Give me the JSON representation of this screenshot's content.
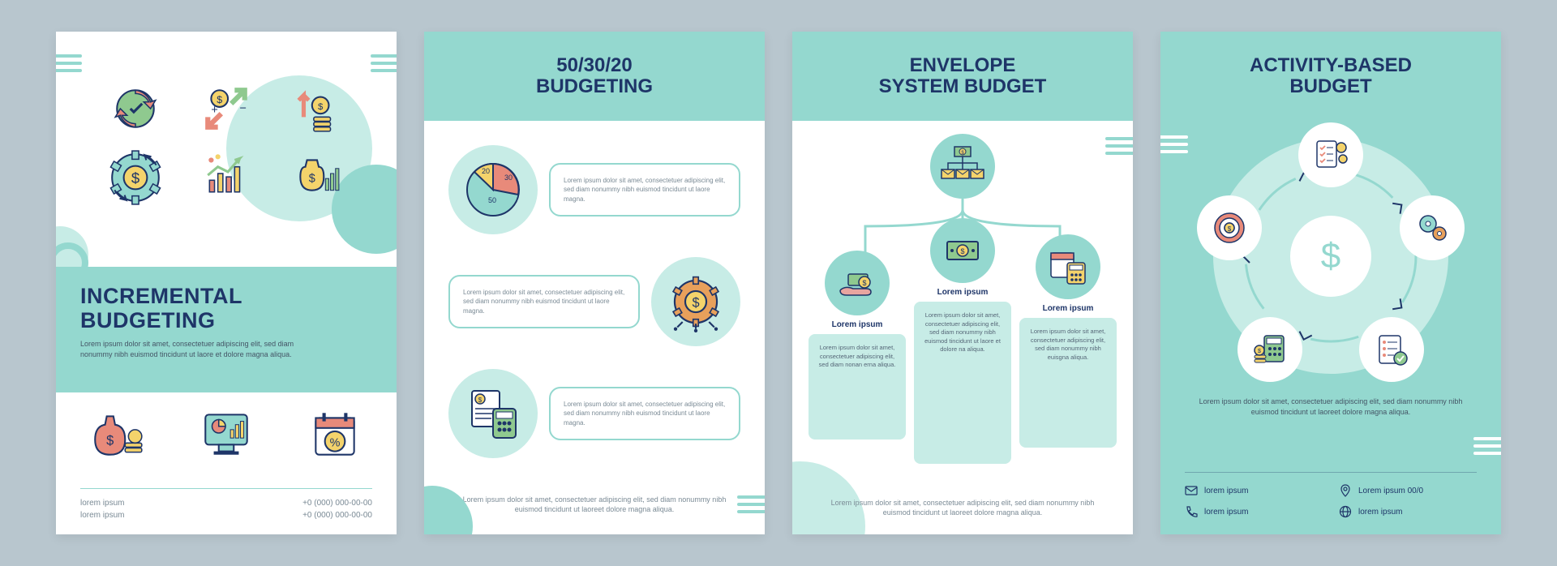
{
  "colors": {
    "teal": "#94d8cf",
    "teal_light": "#c7ece6",
    "navy": "#1e3568",
    "red": "#e88a7a",
    "yellow": "#f4d36b",
    "green": "#8fc98f",
    "orange": "#e8a05b",
    "bg": "#b8c6ce",
    "card": "#ffffff"
  },
  "lorem_short": "Lorem ipsum dolor sit amet, consectetuer adipiscing elit, sed diam nonummy nibh euismod tincidunt ut laore magna.",
  "lorem_med": "Lorem ipsum dolor sit amet, consectetuer adipiscing elit, sed diam nonummy nibh euismod tincidunt ut laoreet dolore magna aliqua.",
  "panel1": {
    "title": "INCREMENTAL BUDGETING",
    "subtitle": "Lorem ipsum dolor sit amet, consectetuer adipiscing elit, sed diam nonummy nibh euismod tincidunt ut laore et dolore magna aliqua.",
    "top_icons": [
      "refresh-cycle",
      "money-exchange",
      "coins-up",
      "gear-dollar",
      "chart-growth",
      "money-bag-chart"
    ],
    "bottom_icons": [
      "money-bag-coins",
      "computer-chart",
      "calendar-percent"
    ],
    "footer_left": [
      "lorem ipsum",
      "lorem ipsum"
    ],
    "footer_right": [
      "+0 (000) 000-00-00",
      "+0 (000) 000-00-00"
    ]
  },
  "panel2": {
    "title": "50/30/20 BUDGETING",
    "pie": {
      "slices": [
        {
          "label": "50",
          "pct": 50,
          "color": "#94d8cf"
        },
        {
          "label": "30",
          "pct": 30,
          "color": "#e88a7a"
        },
        {
          "label": "20",
          "pct": 20,
          "color": "#f4d36b"
        }
      ]
    },
    "rows": [
      {
        "icon": "pie-chart",
        "text": "Lorem ipsum dolor sit amet, consectetuer adipiscing elit, sed diam nonummy nibh euismod tincidunt ut laore magna."
      },
      {
        "icon": "gear-dollar",
        "text": "Lorem ipsum dolor sit amet, consectetuer adipiscing elit, sed diam nonummy nibh euismod tincidunt ut laore magna."
      },
      {
        "icon": "doc-calculator",
        "text": "Lorem ipsum dolor sit amet, consectetuer adipiscing elit, sed diam nonummy nibh euismod tincidunt ut laore magna."
      }
    ],
    "footer": "Lorem ipsum dolor sit amet, consectetuer adipiscing elit, sed diam nonummy nibh euismod tincidunt ut laoreet dolore magna aliqua."
  },
  "panel3": {
    "title": "ENVELOPE SYSTEM BUDGET",
    "root_icon": "envelopes-tree",
    "cols": [
      {
        "icon": "hand-money",
        "label": "Lorem ipsum",
        "text": "Lorem ipsum dolor sit amet, consectetuer adipiscing elit, sed diam nonan erna aliqua."
      },
      {
        "icon": "cash-bill",
        "label": "Lorem ipsum",
        "text": "Lorem ipsum dolor sit amet, consectetuer adipiscing elit, sed diam nonummy nibh euismod tincidunt ut laore et dolore na aliqua."
      },
      {
        "icon": "calendar-calc",
        "label": "Lorem ipsum",
        "text": "Lorem ipsum dolor sit amet, consectetuer adipiscing elit, sed diam nonummy nibh euisgna aliqua."
      }
    ],
    "footer": "Lorem ipsum dolor sit amet, consectetuer adipiscing elit, sed diam nonummy nibh euismod tincidunt ut laoreet dolore magna aliqua."
  },
  "panel4": {
    "title": "ACTIVITY-BASED BUDGET",
    "center_icon": "dollar",
    "nodes": [
      "checklist-gears",
      "gears",
      "target",
      "doc-check",
      "calc-coins"
    ],
    "body": "Lorem ipsum dolor sit amet, consectetuer adipiscing elit, sed diam nonummy nibh euismod tincidunt ut laoreet dolore magna aliqua.",
    "contacts": [
      {
        "icon": "mail",
        "text": "lorem ipsum"
      },
      {
        "icon": "pin",
        "text": "Lorem ipsum 00/0"
      },
      {
        "icon": "phone",
        "text": "lorem ipsum"
      },
      {
        "icon": "globe",
        "text": "lorem ipsum"
      }
    ]
  }
}
